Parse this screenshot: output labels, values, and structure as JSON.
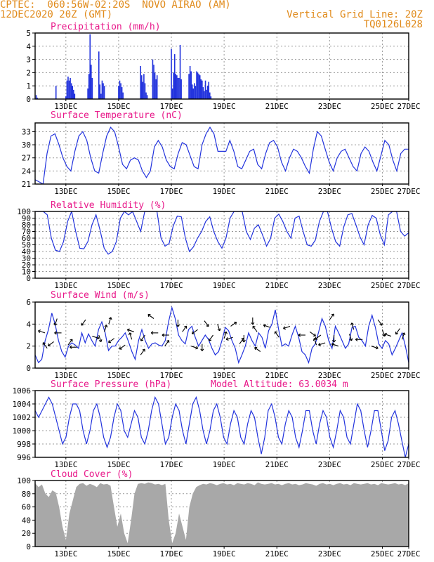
{
  "header": {
    "line1_left": "CPTEC:  060:56W-02:20S  NOVO AIRAO (AM)",
    "line2_left": "12DEC2020 20Z (GMT)",
    "line2_right": "Vertical Grid Line: 20Z",
    "line3_right": "TQ0126L028"
  },
  "colors": {
    "line": "#2233dd",
    "title": "#e8198a",
    "header": "#e08a1a",
    "cloud": "#a8a8a8",
    "arrow": "#000000"
  },
  "x_tick_labels": [
    "13DEC",
    "15DEC",
    "17DEC",
    "19DEC",
    "21DEC",
    "23DEC",
    "25DEC",
    "27DEC"
  ],
  "chart_data": [
    {
      "id": "precip",
      "type": "bar",
      "title": "Precipitation (mm/h)",
      "ylim": [
        0,
        5
      ],
      "yticks": [
        0,
        1,
        2,
        3,
        4,
        5
      ],
      "x_hours_since_start": [
        1,
        2,
        19,
        28,
        29,
        30,
        31,
        32,
        33,
        34,
        35,
        36,
        48,
        49,
        50,
        51,
        52,
        58,
        59,
        60,
        61,
        62,
        63,
        76,
        77,
        78,
        79,
        80,
        96,
        97,
        98,
        99,
        100,
        101,
        102,
        107,
        108,
        109,
        110,
        111,
        124,
        125,
        126,
        127,
        128,
        129,
        130,
        131,
        132,
        133,
        140,
        141,
        142,
        143,
        144,
        145,
        146,
        147,
        148,
        149,
        150,
        151,
        152,
        153,
        154,
        155,
        156,
        157,
        158,
        159,
        160
      ],
      "values": [
        0.3,
        0.1,
        1.0,
        0.2,
        1.4,
        1.7,
        1.4,
        1.6,
        1.2,
        1.0,
        0.7,
        0.4,
        0.8,
        1.9,
        4.9,
        2.6,
        1.6,
        3.6,
        1.1,
        0.4,
        1.4,
        1.2,
        1.0,
        1.0,
        1.4,
        1.2,
        0.9,
        0.5,
        2.5,
        1.8,
        1.3,
        1.9,
        1.2,
        0.5,
        0.3,
        3.0,
        2.6,
        2.0,
        1.5,
        1.8,
        3.8,
        0.8,
        2.0,
        3.4,
        1.9,
        1.8,
        1.6,
        1.6,
        4.1,
        1.5,
        1.9,
        2.5,
        2.1,
        1.1,
        0.8,
        1.2,
        1.0,
        2.1,
        2.0,
        1.9,
        1.8,
        1.5,
        1.4,
        0.9,
        0.6,
        1.4,
        0.7,
        1.0,
        1.3,
        0.5,
        0.2
      ]
    },
    {
      "id": "temp",
      "type": "line",
      "title": "Surface Temperature (nC)",
      "ylim": [
        21,
        35
      ],
      "yticks": [
        21,
        24,
        27,
        30,
        33
      ],
      "y": [
        22,
        21.5,
        21,
        28,
        32,
        32.5,
        30,
        27,
        25,
        24,
        28.5,
        32,
        33,
        31,
        27,
        24,
        23.5,
        28,
        32,
        34,
        33,
        29.5,
        25.5,
        24.5,
        26.5,
        27,
        26.5,
        24,
        22.5,
        24,
        29.5,
        31,
        29.5,
        26.5,
        25,
        24.5,
        28,
        30.5,
        30,
        27.5,
        25,
        24.5,
        30,
        32.5,
        34,
        32.5,
        28.5,
        28.5,
        28.5,
        31,
        28.5,
        25,
        24.5,
        26.5,
        28.5,
        29,
        25.5,
        24.5,
        28,
        30.5,
        31,
        29.5,
        26,
        24,
        27,
        29,
        28.5,
        27,
        25,
        23.5,
        29,
        33,
        32,
        29,
        26,
        24,
        27,
        28.5,
        29,
        27,
        25,
        24,
        28,
        29.5,
        28.5,
        26,
        24,
        27.5,
        31,
        30,
        26.5,
        24,
        28,
        29,
        29
      ]
    },
    {
      "id": "rh",
      "type": "line",
      "title": "Relative Humidity (%)",
      "ylim": [
        0,
        100
      ],
      "yticks": [
        0,
        10,
        20,
        30,
        40,
        50,
        60,
        70,
        80,
        90,
        100
      ],
      "y": [
        100,
        100,
        100,
        95,
        60,
        42,
        40,
        55,
        85,
        100,
        70,
        45,
        44,
        55,
        80,
        95,
        72,
        45,
        36,
        40,
        55,
        90,
        100,
        95,
        100,
        85,
        70,
        100,
        100,
        100,
        100,
        60,
        48,
        52,
        78,
        93,
        92,
        60,
        40,
        47,
        60,
        70,
        85,
        92,
        70,
        55,
        45,
        60,
        90,
        100,
        100,
        100,
        70,
        58,
        75,
        80,
        65,
        48,
        60,
        90,
        96,
        85,
        70,
        60,
        90,
        93,
        70,
        50,
        48,
        57,
        85,
        100,
        100,
        75,
        55,
        48,
        77,
        95,
        97,
        80,
        62,
        50,
        80,
        94,
        90,
        65,
        50,
        95,
        100,
        100,
        70,
        63,
        68
      ]
    },
    {
      "id": "wind",
      "type": "line",
      "title": "Surface Wind (m/s)",
      "ylim": [
        0,
        6
      ],
      "yticks": [
        0,
        2,
        4,
        6
      ],
      "y": [
        1.2,
        0.5,
        0.8,
        2.5,
        3.5,
        5,
        4,
        2.5,
        1.5,
        1,
        2,
        2.3,
        2.1,
        1.8,
        3.2,
        2.3,
        3.1,
        2.5,
        2,
        3.5,
        4.2,
        3.2,
        1.6,
        2,
        2,
        2.5,
        2.8,
        3.2,
        2.4,
        1.5,
        0.8,
        2.5,
        3.5,
        2.5,
        1.8,
        2.2,
        2.3,
        2.1,
        2,
        2.5,
        4.2,
        5.5,
        4.5,
        3,
        2.5,
        2.2,
        3.5,
        3.8,
        2.8,
        2,
        2.5,
        3,
        2.6,
        1.8,
        1.2,
        1.5,
        2.5,
        3.7,
        3.4,
        2.5,
        1.8,
        0.5,
        1.2,
        2,
        3.2,
        2.5,
        2,
        3.2,
        2.8,
        1.8,
        3.4,
        4,
        5.3,
        3.5,
        2,
        2.2,
        2,
        3,
        3.8,
        2.8,
        1.5,
        1.2,
        0.5,
        1.8,
        2.2,
        3.3,
        4.5,
        3.8,
        2.5,
        1.8,
        3.8,
        3.2,
        2.5,
        1.8,
        2.2,
        3.7,
        3.8,
        2.8,
        2.5,
        2,
        3.8,
        4.8,
        3.7,
        2.2,
        1.8,
        2.5,
        2.2,
        1.2,
        1.8,
        2.5,
        3.2,
        2,
        0.5
      ],
      "arrows": [
        [
          9,
          3.2,
          0.9
        ],
        [
          11,
          1.8,
          0.7
        ],
        [
          17,
          2.4,
          -0.8
        ],
        [
          20,
          4.5,
          -0.6
        ],
        [
          24,
          3.2,
          1.0
        ],
        [
          30,
          2.1,
          0.3
        ],
        [
          38,
          1.9,
          -1.0
        ],
        [
          46,
          4.4,
          -0.7
        ],
        [
          52,
          2.9,
          -0.1
        ],
        [
          58,
          3.0,
          -0.4
        ],
        [
          63,
          3.3,
          0.4
        ],
        [
          67,
          4.0,
          0.4
        ],
        [
          72,
          2.7,
          -0.8
        ],
        [
          82,
          2.1,
          -0.8
        ],
        [
          88,
          2.6,
          0.6
        ],
        [
          90,
          3.3,
          0.9
        ],
        [
          96,
          1.2,
          0.3
        ],
        [
          100,
          3.0,
          -0.7
        ],
        [
          108,
          4.5,
          0.8
        ],
        [
          112,
          3.2,
          -1.0
        ],
        [
          118,
          2.0,
          0.3
        ],
        [
          122,
          3.0,
          -1.0
        ],
        [
          130,
          4.4,
          -0.5
        ],
        [
          134,
          3.3,
          0.3
        ],
        [
          142,
          2.0,
          -0.1
        ],
        [
          148,
          3.5,
          -0.8
        ],
        [
          152,
          2.2,
          -0.5
        ],
        [
          154,
          4.3,
          -0.3
        ],
        [
          162,
          3.0,
          -0.7
        ],
        [
          166,
          4.0,
          -0.4
        ],
        [
          172,
          2.7,
          0.4
        ],
        [
          178,
          3.8,
          0.2
        ],
        [
          180,
          2.8,
          -0.9
        ],
        [
          186,
          2.2,
          0.3
        ],
        [
          190,
          3.0,
          -0.5
        ],
        [
          198,
          4.6,
          -0.5
        ],
        [
          202,
          3.3,
          0.7
        ],
        [
          205,
          1.5,
          0.8
        ],
        [
          214,
          3.7,
          0.9
        ],
        [
          222,
          2.8,
          0.7
        ],
        [
          232,
          3.8,
          -0.9
        ],
        [
          246,
          3.0,
          1.0
        ],
        [
          250,
          3.3,
          -0.2
        ],
        [
          256,
          2.1,
          0.6
        ],
        [
          260,
          3.0,
          -0.8
        ],
        [
          264,
          2.3,
          -0.9
        ],
        [
          268,
          4.4,
          0.3
        ],
        [
          272,
          3.0,
          -0.5
        ],
        [
          276,
          2.0,
          0.9
        ],
        [
          286,
          3.1,
          -0.4
        ],
        [
          290,
          3.5,
          0.6
        ],
        [
          298,
          2.6,
          -1.0
        ],
        [
          306,
          2.0,
          -0.1
        ],
        [
          312,
          4.4,
          -0.3
        ],
        [
          316,
          3.5,
          -0.4
        ],
        [
          324,
          2.9,
          0.9
        ],
        [
          332,
          3.6,
          -0.7
        ],
        [
          334,
          2.6,
          0.4
        ],
        [
          346,
          4.3,
          0.8
        ],
        [
          350,
          3.2,
          -0.8
        ],
        [
          358,
          3.3,
          0.4
        ],
        [
          364,
          2.9,
          -0.3
        ],
        [
          366,
          2.3,
          0.5
        ],
        [
          370,
          4.4,
          0.4
        ],
        [
          378,
          3.4,
          -0.1
        ],
        [
          384,
          2.1,
          -0.3
        ],
        [
          394,
          3.1,
          -0.4
        ],
        [
          398,
          2.7,
          0.4
        ],
        [
          408,
          4.3,
          0.9
        ],
        [
          412,
          3.1,
          0.7
        ],
        [
          414,
          2.2,
          -0.8
        ]
      ]
    },
    {
      "id": "pres",
      "type": "line",
      "title": "Surface Pressure (hPa)",
      "annotation": "Model Altitude: 63.0034 m",
      "ylim": [
        996,
        1006
      ],
      "yticks": [
        996,
        998,
        1000,
        1002,
        1004,
        1006
      ],
      "y": [
        1003,
        1002,
        1003,
        1004,
        1005,
        1004,
        1002,
        1000,
        998,
        999,
        1002,
        1004,
        1004,
        1003,
        1000,
        998,
        1000,
        1003,
        1004,
        1002,
        999,
        997.5,
        999,
        1002,
        1004,
        1003,
        1000,
        999,
        1001,
        1003,
        1002,
        999,
        998,
        1000,
        1003,
        1005,
        1004,
        1001,
        998,
        999,
        1002,
        1004,
        1003,
        1000,
        998,
        1001,
        1004,
        1005,
        1003,
        1000,
        998,
        1000,
        1003,
        1004,
        1002,
        999,
        998,
        1001,
        1003,
        1002,
        999,
        998,
        1001,
        1003,
        1002,
        999,
        996.5,
        999,
        1003,
        1004,
        1002,
        999,
        998,
        1001,
        1003,
        1002,
        999,
        997.5,
        1000,
        1003,
        1003,
        1000,
        998,
        1001,
        1003,
        1002,
        999,
        997.5,
        1000,
        1003,
        1002,
        999,
        998,
        1001,
        1004,
        1003,
        1000,
        997.5,
        1000,
        1003,
        1003,
        1000,
        997,
        998.5,
        1002,
        1003,
        1001,
        998.5,
        996,
        998
      ]
    },
    {
      "id": "cloud",
      "type": "area",
      "title": "Cloud Cover (%)",
      "ylim": [
        0,
        100
      ],
      "yticks": [
        0,
        20,
        40,
        60,
        80,
        100
      ],
      "y": [
        96,
        90,
        94,
        80,
        75,
        85,
        82,
        60,
        30,
        10,
        50,
        70,
        90,
        95,
        96,
        92,
        95,
        93,
        90,
        96,
        94,
        95,
        92,
        60,
        30,
        50,
        20,
        5,
        40,
        80,
        95,
        96,
        95,
        97,
        96,
        94,
        95,
        93,
        95,
        40,
        5,
        20,
        50,
        30,
        10,
        60,
        80,
        90,
        93,
        95,
        94,
        96,
        95,
        93,
        95,
        96,
        94,
        95,
        93,
        96,
        95,
        94,
        96,
        95,
        93,
        97,
        95,
        94,
        95,
        96,
        94,
        95,
        93,
        95,
        96,
        94,
        95,
        93,
        94,
        96,
        95,
        94,
        92,
        95,
        96,
        94,
        95,
        93,
        95,
        96,
        94,
        95,
        93,
        96,
        95,
        94,
        95,
        96,
        94,
        95,
        93,
        96,
        95,
        94,
        95,
        96,
        94,
        95,
        93,
        96
      ]
    }
  ]
}
